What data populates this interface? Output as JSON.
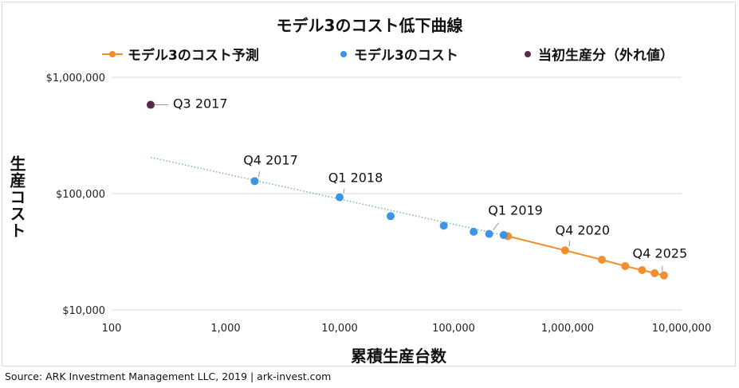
{
  "chart_data": {
    "type": "scatter",
    "title": "モデル3のコスト低下曲線",
    "xlabel": "累積生産台数",
    "ylabel": "生産コスト",
    "x_scale": "log",
    "y_scale": "log",
    "xlim": [
      100,
      10000000
    ],
    "ylim": [
      10000,
      1000000
    ],
    "x_tick_labels": [
      "100",
      "1,000",
      "10,000",
      "100,000",
      "1,000,000",
      "10,000,000"
    ],
    "x_tick_values": [
      100,
      1000,
      10000,
      100000,
      1000000,
      10000000
    ],
    "y_tick_labels": [
      "$10,000",
      "$100,000",
      "$1,000,000"
    ],
    "y_tick_values": [
      10000,
      100000,
      1000000
    ],
    "grid": "horizontal",
    "legend_position": "top",
    "series": [
      {
        "name": "モデル3のコスト予測",
        "kind": "line-with-markers",
        "color": "#f28e2b",
        "x": [
          300000,
          950000,
          2000000,
          3200000,
          4500000,
          5800000,
          7000000
        ],
        "y": [
          43000,
          32500,
          27000,
          23800,
          22000,
          20700,
          19800
        ]
      },
      {
        "name": "モデル3のコスト",
        "kind": "scatter",
        "color": "#3a95e6",
        "x": [
          1800,
          10000,
          28000,
          82000,
          150000,
          205000,
          275000
        ],
        "y": [
          128000,
          93000,
          64000,
          53000,
          47000,
          45000,
          44000
        ]
      },
      {
        "name": "当初生産分（外れ値）",
        "kind": "scatter",
        "color": "#5a2a4a",
        "x": [
          220
        ],
        "y": [
          580000
        ]
      }
    ],
    "trendline": {
      "color": "#7fb8b0",
      "style": "dotted",
      "x": [
        220,
        300000
      ],
      "y": [
        205000,
        43000
      ]
    },
    "annotations": [
      {
        "text": "Q3 2017",
        "x": 220,
        "y": 580000
      },
      {
        "text": "Q4 2017",
        "x": 1800,
        "y": 128000
      },
      {
        "text": "Q1 2018",
        "x": 10000,
        "y": 93000
      },
      {
        "text": "Q1 2019",
        "x": 205000,
        "y": 45000
      },
      {
        "text": "Q4 2020",
        "x": 950000,
        "y": 32500
      },
      {
        "text": "Q4 2025",
        "x": 7000000,
        "y": 19800
      }
    ]
  },
  "source": "Source: ARK Investment Management LLC, 2019 | ark-invest.com"
}
